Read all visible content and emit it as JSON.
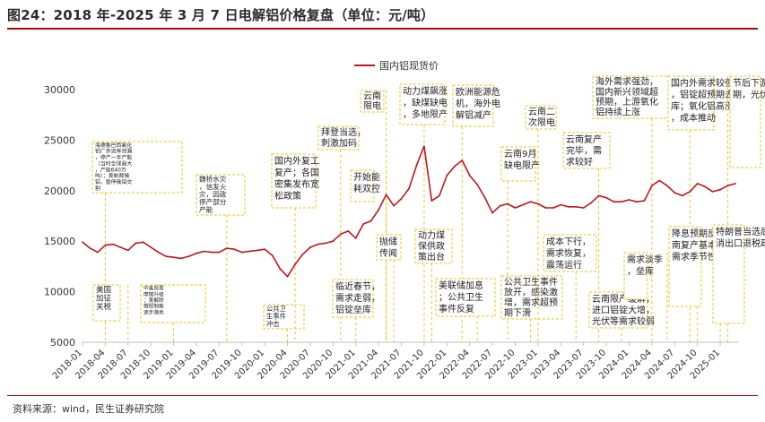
{
  "title": "图24：2018 年-2025 年 3 月 7 日电解铝价格复盘（单位：元/吨）",
  "source": "资料来源：wind，民生证券研究院",
  "colors": {
    "series": "#c0161c",
    "title_rule": "#a50a0a",
    "annotation_border": "#f2c318",
    "axis": "#bfbfbf",
    "text": "#333333"
  },
  "chart_data": {
    "type": "line",
    "ylim": [
      5000,
      30000
    ],
    "yticks": [
      5000,
      10000,
      15000,
      20000,
      25000,
      30000
    ],
    "xticks": [
      "2018-01",
      "2018-04",
      "2018-07",
      "2018-10",
      "2019-01",
      "2019-04",
      "2019-07",
      "2019-10",
      "2020-01",
      "2020-04",
      "2020-07",
      "2020-10",
      "2021-01",
      "2021-04",
      "2021-07",
      "2021-10",
      "2022-01",
      "2022-04",
      "2022-07",
      "2022-10",
      "2023-01",
      "2023-04",
      "2023-07",
      "2023-10",
      "2024-01",
      "2024-04",
      "2024-07",
      "2024-10",
      "2025-01"
    ],
    "legend": {
      "label": "国内铝现货价",
      "position": "top-left"
    },
    "grid": false,
    "series": [
      {
        "name": "国内铝现货价",
        "points": [
          [
            "2018-01",
            14900
          ],
          [
            "2018-02",
            14300
          ],
          [
            "2018-03",
            13900
          ],
          [
            "2018-04",
            14600
          ],
          [
            "2018-05",
            14700
          ],
          [
            "2018-06",
            14400
          ],
          [
            "2018-07",
            14100
          ],
          [
            "2018-08",
            14800
          ],
          [
            "2018-09",
            14900
          ],
          [
            "2018-10",
            14400
          ],
          [
            "2018-11",
            13900
          ],
          [
            "2018-12",
            13500
          ],
          [
            "2019-01",
            13400
          ],
          [
            "2019-02",
            13300
          ],
          [
            "2019-03",
            13500
          ],
          [
            "2019-04",
            13800
          ],
          [
            "2019-05",
            14000
          ],
          [
            "2019-06",
            13900
          ],
          [
            "2019-07",
            13900
          ],
          [
            "2019-08",
            14300
          ],
          [
            "2019-09",
            14200
          ],
          [
            "2019-10",
            13900
          ],
          [
            "2019-11",
            14000
          ],
          [
            "2019-12",
            14100
          ],
          [
            "2020-01",
            14200
          ],
          [
            "2020-02",
            13600
          ],
          [
            "2020-03",
            12300
          ],
          [
            "2020-04",
            11500
          ],
          [
            "2020-05",
            12700
          ],
          [
            "2020-06",
            13700
          ],
          [
            "2020-07",
            14400
          ],
          [
            "2020-08",
            14700
          ],
          [
            "2020-09",
            14800
          ],
          [
            "2020-10",
            15000
          ],
          [
            "2020-11",
            15700
          ],
          [
            "2020-12",
            16000
          ],
          [
            "2021-01",
            15300
          ],
          [
            "2021-02",
            16700
          ],
          [
            "2021-03",
            17000
          ],
          [
            "2021-04",
            18100
          ],
          [
            "2021-05",
            19600
          ],
          [
            "2021-06",
            18500
          ],
          [
            "2021-07",
            19200
          ],
          [
            "2021-08",
            20200
          ],
          [
            "2021-09",
            22500
          ],
          [
            "2021-10",
            24400
          ],
          [
            "2021-11",
            19000
          ],
          [
            "2021-12",
            19500
          ],
          [
            "2022-01",
            21500
          ],
          [
            "2022-02",
            22400
          ],
          [
            "2022-03",
            23000
          ],
          [
            "2022-04",
            21500
          ],
          [
            "2022-05",
            20600
          ],
          [
            "2022-06",
            19300
          ],
          [
            "2022-07",
            17800
          ],
          [
            "2022-08",
            18500
          ],
          [
            "2022-09",
            18700
          ],
          [
            "2022-10",
            18300
          ],
          [
            "2022-11",
            18600
          ],
          [
            "2022-12",
            18900
          ],
          [
            "2023-01",
            18700
          ],
          [
            "2023-02",
            18300
          ],
          [
            "2023-03",
            18300
          ],
          [
            "2023-04",
            18600
          ],
          [
            "2023-05",
            18400
          ],
          [
            "2023-06",
            18400
          ],
          [
            "2023-07",
            18300
          ],
          [
            "2023-08",
            18800
          ],
          [
            "2023-09",
            19500
          ],
          [
            "2023-10",
            19300
          ],
          [
            "2023-11",
            18900
          ],
          [
            "2023-12",
            18900
          ],
          [
            "2024-01",
            19100
          ],
          [
            "2024-02",
            18900
          ],
          [
            "2024-03",
            19000
          ],
          [
            "2024-04",
            20500
          ],
          [
            "2024-05",
            21000
          ],
          [
            "2024-06",
            20500
          ],
          [
            "2024-07",
            19800
          ],
          [
            "2024-08",
            19500
          ],
          [
            "2024-09",
            19900
          ],
          [
            "2024-10",
            20700
          ],
          [
            "2024-11",
            20400
          ],
          [
            "2024-12",
            19900
          ],
          [
            "2025-01",
            20100
          ],
          [
            "2025-02",
            20500
          ],
          [
            "2025-03",
            20700
          ]
        ]
      }
    ],
    "annotations": [
      {
        "text": "海德鲁巴西氧化铝厂赤泥库泄漏，停产一半产能（当时全球最大，产能640万吨）；美制裁俄铝，暂停俄铝交割",
        "date": "2018-04"
      },
      {
        "text": "美国加征关税",
        "date": "2018-07"
      },
      {
        "text": "中美贸易摩擦升级；美解除俄铝制裁逐步落地",
        "date": "2019-01"
      },
      {
        "text": "魏桥水灾，信发火灾，因政停产部分产能",
        "date": "2019-08"
      },
      {
        "text": "公共卫生事件冲击",
        "date": "2020-04"
      },
      {
        "text": "国内外复工复产；各国密集发布宽松政策",
        "date": "2020-05"
      },
      {
        "text": "拜登当选，刺激加码",
        "date": "2020-11"
      },
      {
        "text": "临近春节，需求走弱，铝锭垒库",
        "date": "2021-01"
      },
      {
        "text": "开始能耗双控",
        "date": "2021-05"
      },
      {
        "text": "云南限电",
        "date": "2021-05"
      },
      {
        "text": "抛储传闻",
        "date": "2021-06"
      },
      {
        "text": "动力煤飙涨，缺煤缺电，多地限产",
        "date": "2021-10"
      },
      {
        "text": "动力煤保供政策出台",
        "date": "2021-11"
      },
      {
        "text": "欧洲能源危机，海外电解铝减产",
        "date": "2022-03"
      },
      {
        "text": "美联储加息；公共卫生事件反复",
        "date": "2022-05"
      },
      {
        "text": "云南9月缺电限产",
        "date": "2022-09"
      },
      {
        "text": "公共卫生事件放开，感染激增，需求超预期下滑",
        "date": "2022-12"
      },
      {
        "text": "云南二次限电",
        "date": "2023-01"
      },
      {
        "text": "成本下行，需求恢复，震荡运行",
        "date": "2023-06"
      },
      {
        "text": "云南复产完毕，需求较好",
        "date": "2023-09"
      },
      {
        "text": "云南限产缓解，进口铝锭大增，光伏等需求较弱",
        "date": "2023-12"
      },
      {
        "text": "海外需求强劲，国内新兴领域超预期，上游氧化铝持续上涨",
        "date": "2024-04"
      },
      {
        "text": "需求淡季，垒库",
        "date": "2024-06"
      },
      {
        "text": "国内外需求较强，铝锭超预期去库；氧化铝高涨，成本推动",
        "date": "2024-09"
      },
      {
        "text": "降息预期反复；云南复产基本完毕；需求季节性下滑",
        "date": "2024-10"
      },
      {
        "text": "节后下游复产及库存表现符合预期，光伏抢装预期等拉动铝价",
        "date": "2025-02"
      },
      {
        "text": "特朗普当选后政策预期不明，国内取消出口退税政策，氧化铝价格走弱",
        "date": "2025-01"
      }
    ]
  }
}
